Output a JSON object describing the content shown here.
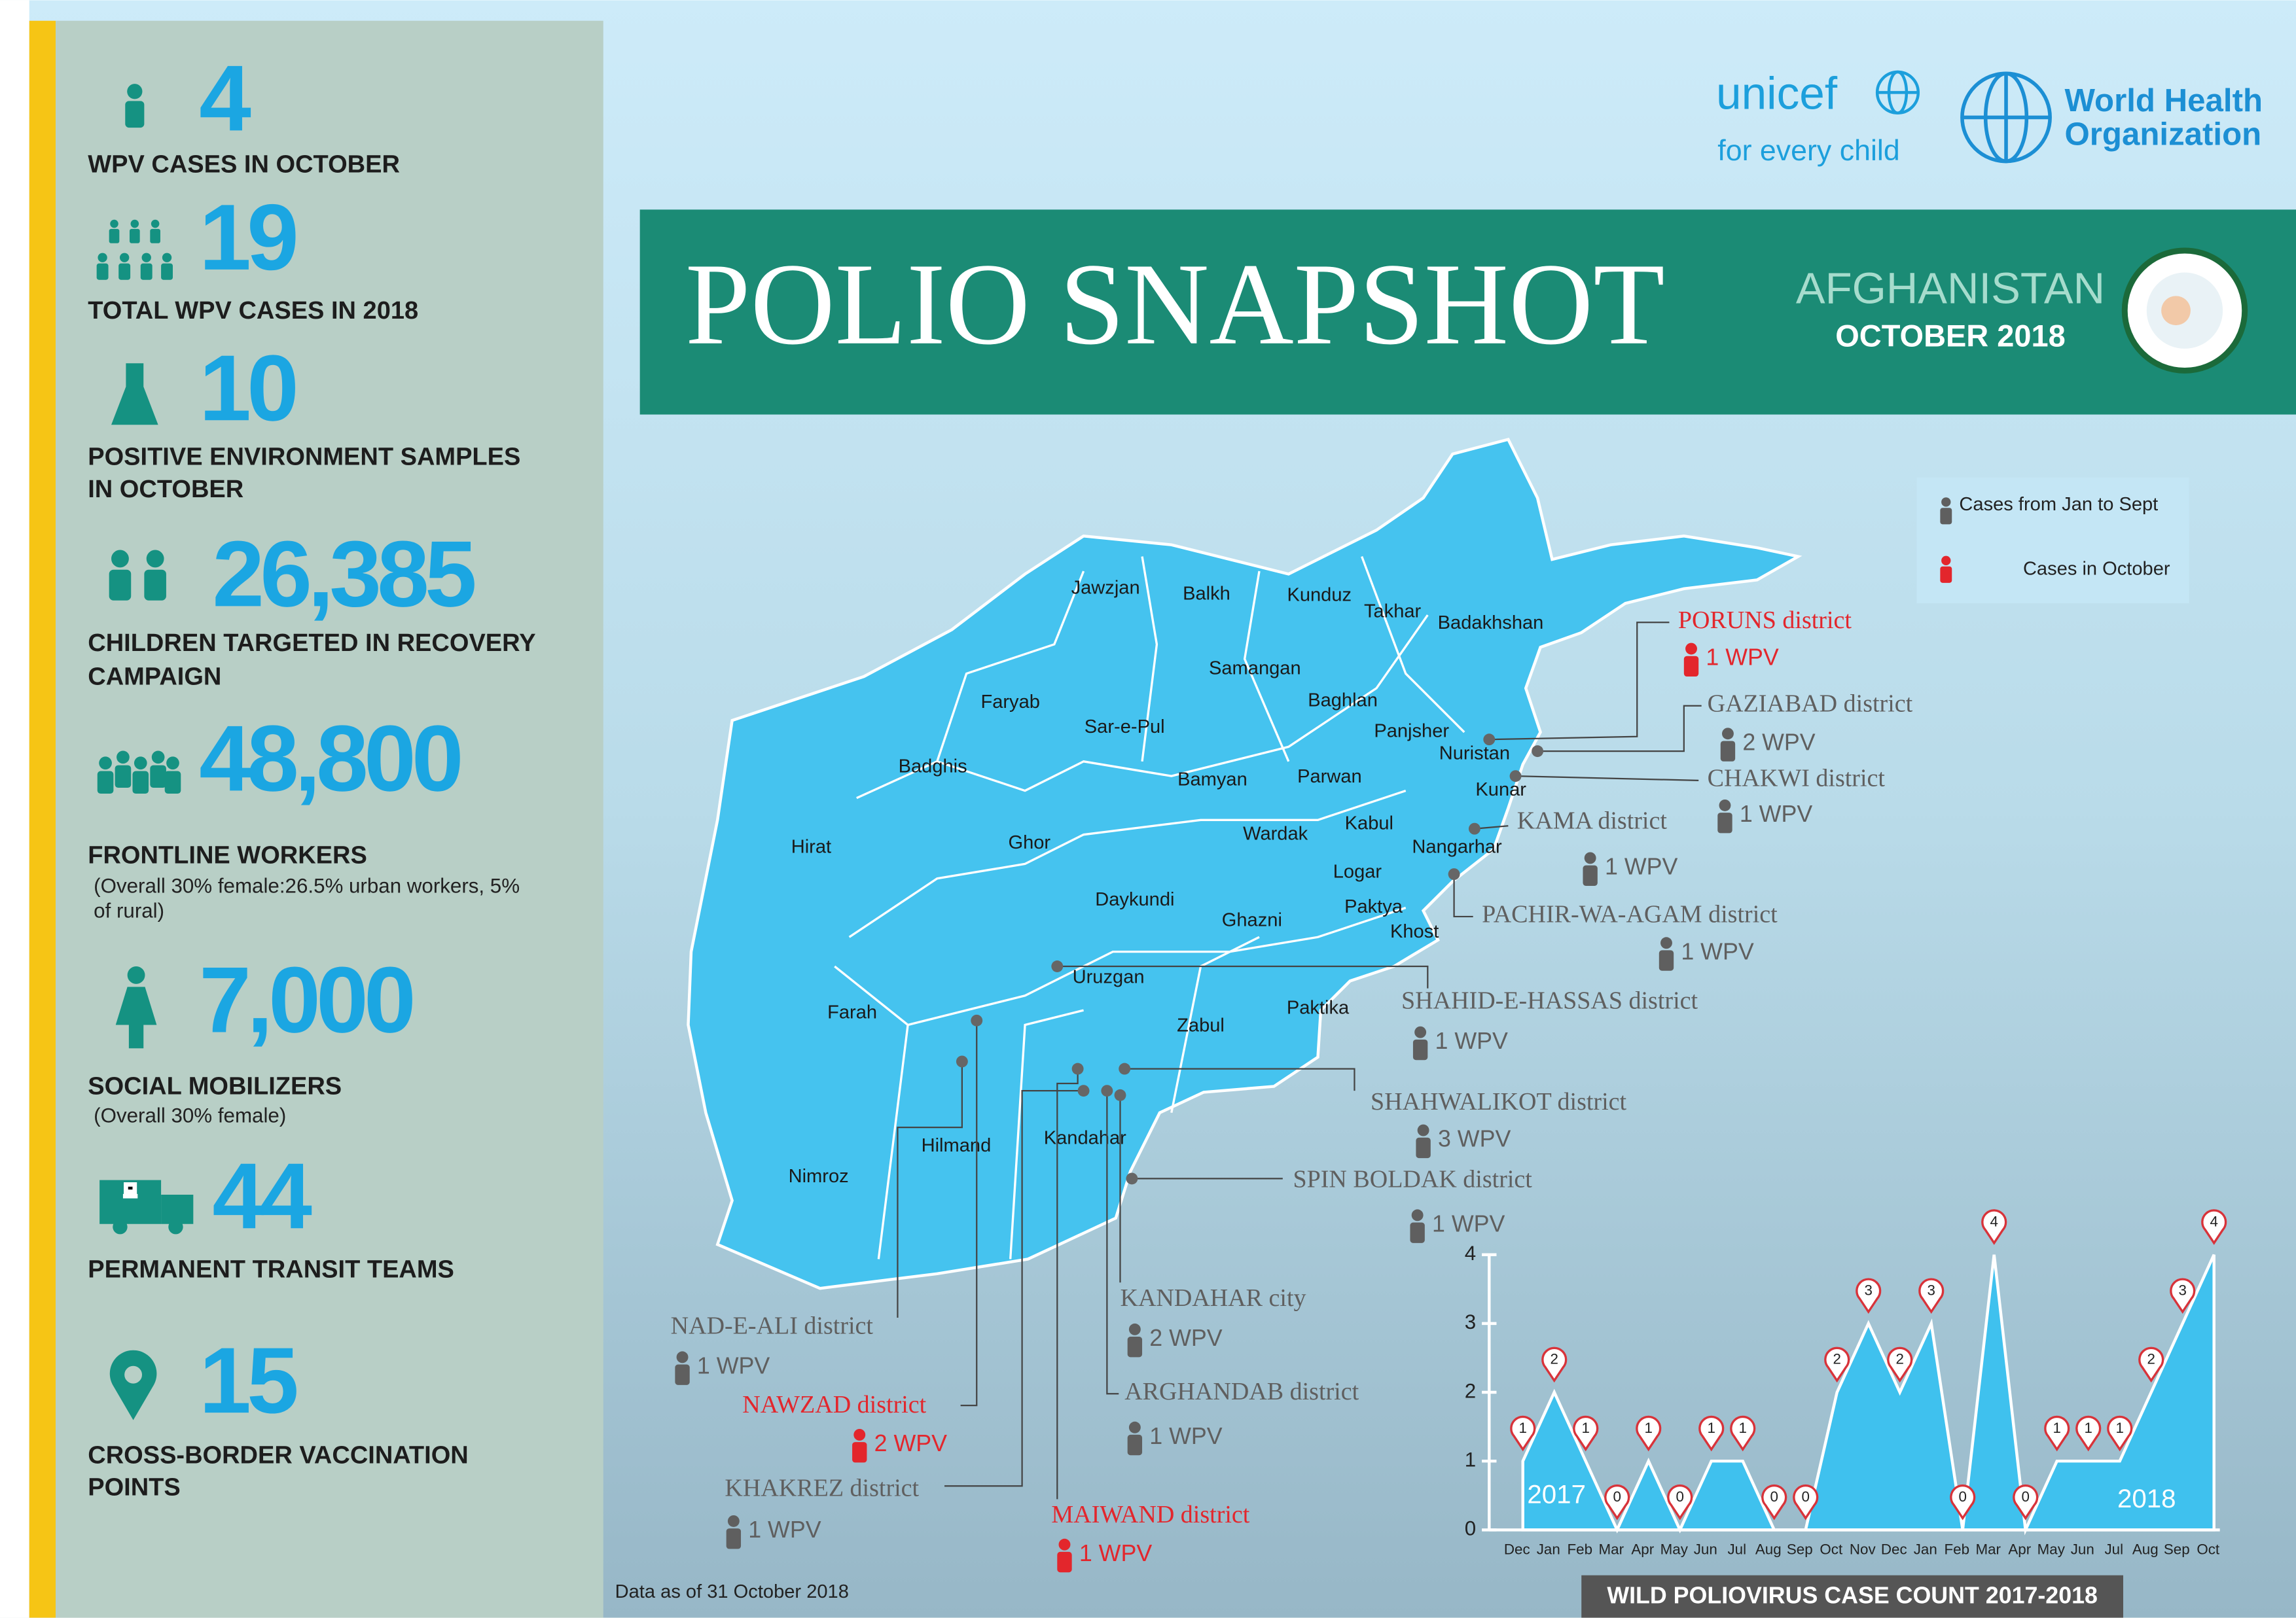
{
  "logos": {
    "unicef": "unicef",
    "unicef_tagline": "for every child",
    "who": [
      "World Health",
      "Organization"
    ]
  },
  "banner": {
    "title": "POLIO SNAPSHOT",
    "country": "AFGHANISTAN",
    "date": "OCTOBER 2018"
  },
  "stats": [
    {
      "value": "4",
      "label": [
        "WPV CASES IN OCTOBER"
      ]
    },
    {
      "value": "19",
      "label": [
        "TOTAL WPV CASES IN 2018"
      ]
    },
    {
      "value": "10",
      "label": [
        "POSITIVE ENVIRONMENT SAMPLES",
        "IN OCTOBER"
      ]
    },
    {
      "value": "26,385",
      "label": [
        "CHILDREN TARGETED IN RECOVERY",
        "CAMPAIGN"
      ]
    },
    {
      "value": "48,800",
      "label": [
        "FRONTLINE WORKERS"
      ],
      "note": [
        "(Overall 30% female:26.5% urban workers, 5%",
        "of rural)"
      ]
    },
    {
      "value": "7,000",
      "label": [
        "SOCIAL MOBILIZERS"
      ],
      "note": [
        "(Overall 30% female)"
      ]
    },
    {
      "value": "44",
      "label": [
        "PERMANENT TRANSIT TEAMS"
      ]
    },
    {
      "value": "15",
      "label": [
        "CROSS-BORDER VACCINATION",
        "POINTS"
      ]
    }
  ],
  "legend": [
    {
      "text": "Cases from Jan to Sept",
      "color": "#5f5f5f"
    },
    {
      "text": "Cases in October",
      "color": "#e3262c"
    }
  ],
  "provinces": [
    "Jawzjan",
    "Balkh",
    "Kunduz",
    "Takhar",
    "Badakhshan",
    "Samangan",
    "Faryab",
    "Baghlan",
    "Sar-e-Pul",
    "Panjsher",
    "Nuristan",
    "Badghis",
    "Bamyan",
    "Parwan",
    "Kunar",
    "Kabul",
    "Hirat",
    "Ghor",
    "Wardak",
    "Nangarhar",
    "Logar",
    "Daykundi",
    "Ghazni",
    "Paktya",
    "Khost",
    "Uruzgan",
    "Farah",
    "Paktika",
    "Zabul",
    "Hilmand",
    "Kandahar",
    "Nimroz"
  ],
  "districts": [
    {
      "name": "PORUNS district",
      "cases": "1 WPV",
      "color": "#e3262c"
    },
    {
      "name": "GAZIABAD district",
      "cases": "2 WPV",
      "color": "#5f5f5f"
    },
    {
      "name": "CHAKWI district",
      "cases": "1 WPV",
      "color": "#5f5f5f"
    },
    {
      "name": "KAMA district",
      "cases": "1 WPV",
      "color": "#5f5f5f"
    },
    {
      "name": "PACHIR-WA-AGAM district",
      "cases": "1 WPV",
      "color": "#5f5f5f"
    },
    {
      "name": "SHAHID-E-HASSAS district",
      "cases": "1 WPV",
      "color": "#5f5f5f"
    },
    {
      "name": "SHAHWALIKOT district",
      "cases": "3 WPV",
      "color": "#5f5f5f"
    },
    {
      "name": "SPIN BOLDAK district",
      "cases": "1 WPV",
      "color": "#5f5f5f"
    },
    {
      "name": "KANDAHAR city",
      "cases": "2 WPV",
      "color": "#5f5f5f"
    },
    {
      "name": "ARGHANDAB district",
      "cases": "1 WPV",
      "color": "#5f5f5f"
    },
    {
      "name": "MAIWAND district",
      "cases": "1 WPV",
      "color": "#e3262c"
    },
    {
      "name": "KHAKREZ district",
      "cases": "1 WPV",
      "color": "#5f5f5f"
    },
    {
      "name": "NAWZAD district",
      "cases": "2 WPV",
      "color": "#e3262c"
    },
    {
      "name": "NAD-E-ALI district",
      "cases": "1 WPV",
      "color": "#5f5f5f"
    }
  ],
  "footnote": "Data as of 31 October 2018",
  "chart_data": {
    "type": "area",
    "title": "WILD POLIOVIRUS CASE COUNT 2017-2018",
    "categories": [
      "Dec",
      "Jan",
      "Feb",
      "Mar",
      "Apr",
      "May",
      "Jun",
      "Jul",
      "Aug",
      "Sep",
      "Oct",
      "Nov",
      "Dec",
      "Jan",
      "Feb",
      "Mar",
      "Apr",
      "May",
      "Jun",
      "Jul",
      "Aug",
      "Sep",
      "Oct"
    ],
    "values": [
      1,
      2,
      1,
      0,
      1,
      0,
      1,
      1,
      0,
      0,
      2,
      3,
      2,
      3,
      0,
      4,
      0,
      1,
      1,
      1,
      2,
      3,
      4
    ],
    "annotations": [
      "2017",
      "2018"
    ],
    "color": "#3fc1ee",
    "marker_color": "#d8333a",
    "ylim": [
      0,
      4
    ],
    "yticks": [
      0,
      1,
      2,
      3,
      4
    ]
  }
}
